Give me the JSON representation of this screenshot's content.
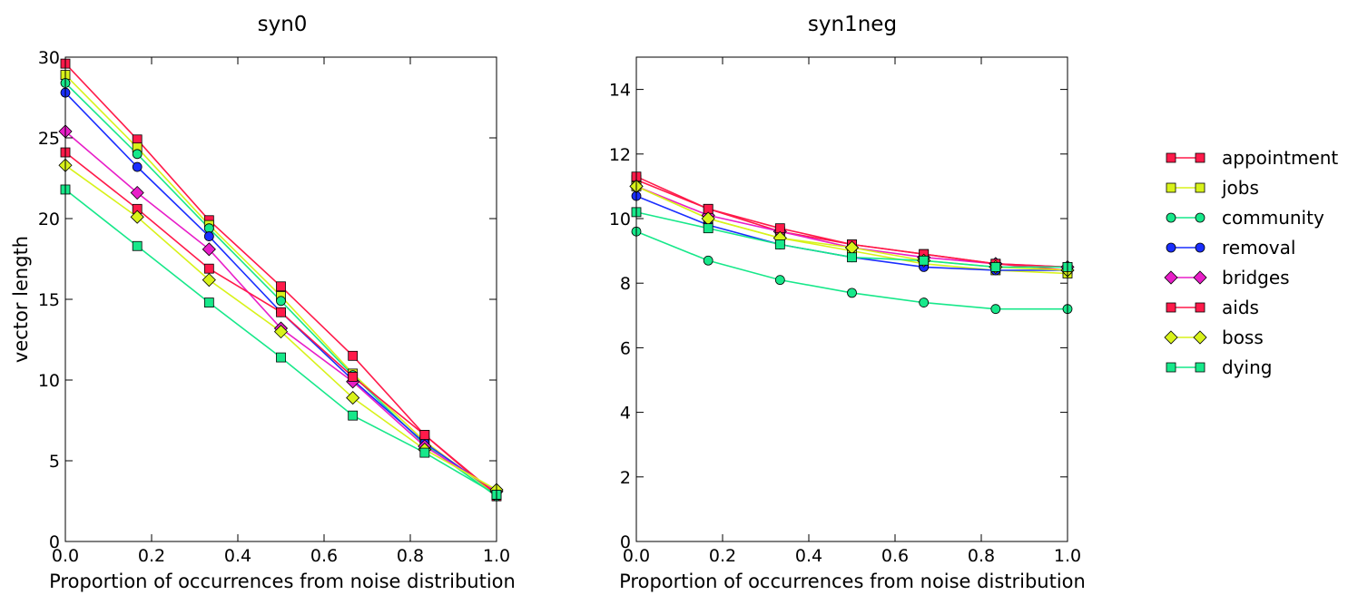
{
  "figure": {
    "legend": {
      "placement": "right",
      "entries": [
        {
          "label": "appointment",
          "color": "#ff1a4a",
          "marker": "square"
        },
        {
          "label": "jobs",
          "color": "#d8f21a",
          "marker": "square"
        },
        {
          "label": "community",
          "color": "#17e88a",
          "marker": "circle"
        },
        {
          "label": "removal",
          "color": "#1a2eff",
          "marker": "circle"
        },
        {
          "label": "bridges",
          "color": "#e81ec8",
          "marker": "diamond"
        },
        {
          "label": "aids",
          "color": "#ff1a4a",
          "marker": "square"
        },
        {
          "label": "boss",
          "color": "#d8f21a",
          "marker": "diamond"
        },
        {
          "label": "dying",
          "color": "#17e88a",
          "marker": "square"
        }
      ]
    }
  },
  "chart_data": [
    {
      "type": "line",
      "title": "syn0",
      "xlabel": "Proportion of occurrences from noise distribution",
      "ylabel": "vector length",
      "xlim": [
        0,
        1
      ],
      "ylim": [
        0,
        30
      ],
      "xticks": [
        "0.0",
        "0.2",
        "0.4",
        "0.6",
        "0.8",
        "1.0"
      ],
      "yticks": [
        "0",
        "5",
        "10",
        "15",
        "20",
        "25",
        "30"
      ],
      "grid": false,
      "x": [
        0,
        0.1667,
        0.3333,
        0.5,
        0.6667,
        0.8333,
        1.0
      ],
      "series": [
        {
          "name": "appointment",
          "values": [
            29.6,
            24.9,
            19.9,
            15.8,
            11.5,
            6.6,
            2.8
          ]
        },
        {
          "name": "jobs",
          "values": [
            28.9,
            24.4,
            19.6,
            15.2,
            10.4,
            6.2,
            2.9
          ]
        },
        {
          "name": "community",
          "values": [
            28.4,
            24.0,
            19.4,
            14.9,
            10.3,
            6.0,
            2.8
          ]
        },
        {
          "name": "removal",
          "values": [
            27.8,
            23.2,
            18.9,
            14.2,
            10.0,
            6.1,
            3.0
          ]
        },
        {
          "name": "bridges",
          "values": [
            25.4,
            21.6,
            18.1,
            13.2,
            9.9,
            5.9,
            3.1
          ]
        },
        {
          "name": "aids",
          "values": [
            24.1,
            20.6,
            16.9,
            14.2,
            10.2,
            6.6,
            2.9
          ]
        },
        {
          "name": "boss",
          "values": [
            23.3,
            20.1,
            16.2,
            13.0,
            8.9,
            5.7,
            3.2
          ]
        },
        {
          "name": "dying",
          "values": [
            21.8,
            18.3,
            14.8,
            11.4,
            7.8,
            5.5,
            2.9
          ]
        }
      ]
    },
    {
      "type": "line",
      "title": "syn1neg",
      "xlabel": "Proportion of occurrences from noise distribution",
      "ylabel": "",
      "xlim": [
        0,
        1
      ],
      "ylim": [
        0,
        15
      ],
      "xticks": [
        "0.0",
        "0.2",
        "0.4",
        "0.6",
        "0.8",
        "1.0"
      ],
      "yticks": [
        "0",
        "2",
        "4",
        "6",
        "8",
        "10",
        "12",
        "14"
      ],
      "grid": false,
      "x": [
        0,
        0.1667,
        0.3333,
        0.5,
        0.6667,
        0.8333,
        1.0
      ],
      "series": [
        {
          "name": "appointment",
          "values": [
            11.2,
            10.3,
            9.6,
            9.2,
            8.9,
            8.6,
            8.4
          ]
        },
        {
          "name": "jobs",
          "values": [
            11.0,
            10.0,
            9.4,
            9.0,
            8.6,
            8.4,
            8.3
          ]
        },
        {
          "name": "community",
          "values": [
            9.6,
            8.7,
            8.1,
            7.7,
            7.4,
            7.2,
            7.2
          ]
        },
        {
          "name": "removal",
          "values": [
            10.7,
            9.8,
            9.2,
            8.8,
            8.5,
            8.4,
            8.4
          ]
        },
        {
          "name": "bridges",
          "values": [
            11.0,
            10.1,
            9.6,
            9.1,
            8.8,
            8.6,
            8.5
          ]
        },
        {
          "name": "aids",
          "values": [
            11.3,
            10.3,
            9.7,
            9.2,
            8.9,
            8.6,
            8.5
          ]
        },
        {
          "name": "boss",
          "values": [
            11.0,
            10.0,
            9.4,
            9.1,
            8.7,
            8.5,
            8.4
          ]
        },
        {
          "name": "dying",
          "values": [
            10.2,
            9.7,
            9.2,
            8.8,
            8.7,
            8.5,
            8.5
          ]
        }
      ]
    }
  ]
}
